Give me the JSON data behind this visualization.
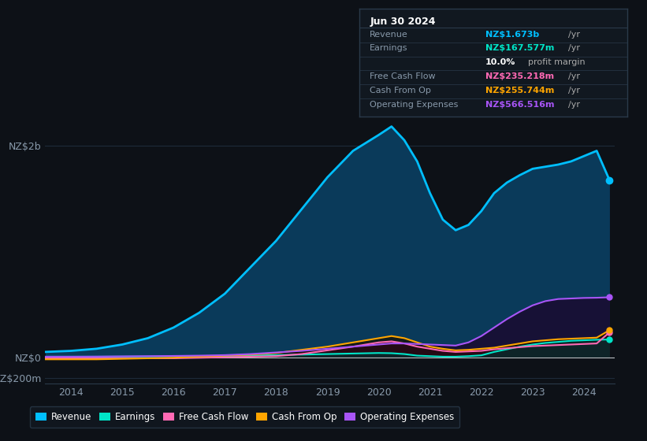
{
  "bg_color": "#0d1117",
  "plot_bg_color": "#0d1117",
  "grid_color": "#1e2a3a",
  "title_box": {
    "date": "Jun 30 2024",
    "rows": [
      {
        "label": "Revenue",
        "value": "NZ$1.673b",
        "value_color": "#00bfff",
        "extra": " /yr"
      },
      {
        "label": "Earnings",
        "value": "NZ$167.577m",
        "value_color": "#00e5c8",
        "extra": " /yr"
      },
      {
        "label": "",
        "value": "10.0%",
        "value_color": "#ffffff",
        "extra": " profit margin"
      },
      {
        "label": "Free Cash Flow",
        "value": "NZ$235.218m",
        "value_color": "#ff69b4",
        "extra": " /yr"
      },
      {
        "label": "Cash From Op",
        "value": "NZ$255.744m",
        "value_color": "#ffa500",
        "extra": " /yr"
      },
      {
        "label": "Operating Expenses",
        "value": "NZ$566.516m",
        "value_color": "#a855f7",
        "extra": " /yr"
      }
    ],
    "label_color": "#8899aa",
    "date_color": "#ffffff",
    "box_bg": "#111820",
    "box_border": "#2a3a4a"
  },
  "years": [
    2013.5,
    2014.0,
    2014.5,
    2015.0,
    2015.5,
    2016.0,
    2016.5,
    2017.0,
    2017.5,
    2018.0,
    2018.5,
    2019.0,
    2019.5,
    2020.0,
    2020.25,
    2020.5,
    2020.75,
    2021.0,
    2021.25,
    2021.5,
    2021.75,
    2022.0,
    2022.25,
    2022.5,
    2022.75,
    2023.0,
    2023.25,
    2023.5,
    2023.75,
    2024.0,
    2024.25,
    2024.5
  ],
  "revenue": [
    0.05,
    0.06,
    0.08,
    0.12,
    0.18,
    0.28,
    0.42,
    0.6,
    0.85,
    1.1,
    1.4,
    1.7,
    1.95,
    2.1,
    2.18,
    2.05,
    1.85,
    1.55,
    1.3,
    1.2,
    1.25,
    1.38,
    1.55,
    1.65,
    1.72,
    1.78,
    1.8,
    1.82,
    1.85,
    1.9,
    1.95,
    1.673
  ],
  "earnings": [
    0.005,
    0.005,
    0.005,
    0.006,
    0.007,
    0.008,
    0.01,
    0.012,
    0.015,
    0.02,
    0.025,
    0.03,
    0.035,
    0.04,
    0.038,
    0.03,
    0.015,
    0.01,
    0.005,
    0.005,
    0.01,
    0.018,
    0.05,
    0.075,
    0.1,
    0.12,
    0.135,
    0.145,
    0.155,
    0.16,
    0.165,
    0.1676
  ],
  "free_cash_flow": [
    -0.01,
    -0.01,
    -0.01,
    -0.01,
    -0.01,
    -0.01,
    -0.005,
    0.0,
    0.005,
    0.01,
    0.03,
    0.065,
    0.1,
    0.14,
    0.15,
    0.13,
    0.1,
    0.08,
    0.06,
    0.05,
    0.055,
    0.06,
    0.075,
    0.085,
    0.095,
    0.105,
    0.11,
    0.115,
    0.12,
    0.125,
    0.13,
    0.2352
  ],
  "cash_from_op": [
    -0.02,
    -0.02,
    -0.02,
    -0.015,
    -0.01,
    -0.005,
    0.005,
    0.015,
    0.025,
    0.04,
    0.07,
    0.1,
    0.14,
    0.18,
    0.2,
    0.18,
    0.14,
    0.1,
    0.08,
    0.065,
    0.07,
    0.08,
    0.09,
    0.11,
    0.13,
    0.15,
    0.16,
    0.17,
    0.175,
    0.18,
    0.185,
    0.2557
  ],
  "op_expenses": [
    0.005,
    0.005,
    0.006,
    0.008,
    0.01,
    0.012,
    0.015,
    0.02,
    0.03,
    0.045,
    0.06,
    0.08,
    0.1,
    0.12,
    0.13,
    0.13,
    0.125,
    0.12,
    0.115,
    0.11,
    0.14,
    0.2,
    0.28,
    0.36,
    0.43,
    0.49,
    0.53,
    0.55,
    0.555,
    0.56,
    0.562,
    0.5665
  ],
  "revenue_color": "#00bfff",
  "revenue_fill": "#0a3a5a",
  "earnings_color": "#00e5c8",
  "earnings_fill": "#003535",
  "free_cash_flow_color": "#ff69b4",
  "free_cash_flow_fill": "#2a0a18",
  "cash_from_op_color": "#ffa500",
  "cash_from_op_fill": "#1a1000",
  "op_expenses_color": "#a855f7",
  "op_expenses_fill": "#1a0a30",
  "ylim": [
    -0.25,
    2.25
  ],
  "yticks": [
    -0.2,
    0.0,
    2.0
  ],
  "ytick_labels": [
    "-NZ$200m",
    "NZ$0",
    "NZ$2b"
  ],
  "xticks": [
    2014,
    2015,
    2016,
    2017,
    2018,
    2019,
    2020,
    2021,
    2022,
    2023,
    2024
  ],
  "legend_labels": [
    "Revenue",
    "Earnings",
    "Free Cash Flow",
    "Cash From Op",
    "Operating Expenses"
  ],
  "legend_colors": [
    "#00bfff",
    "#00e5c8",
    "#ff69b4",
    "#ffa500",
    "#a855f7"
  ]
}
